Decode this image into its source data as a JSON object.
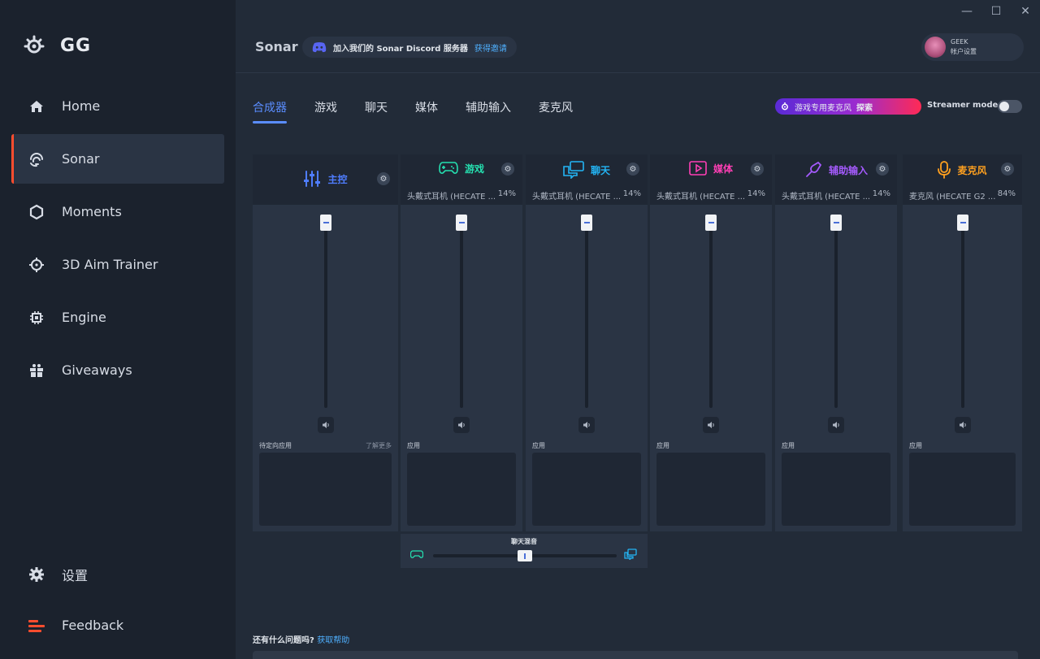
{
  "window": {
    "minimize": "—",
    "maximize": "☐",
    "close": "✕"
  },
  "sidebar": {
    "logo_text": "GG",
    "items": [
      {
        "label": "Home",
        "icon": "home-icon"
      },
      {
        "label": "Sonar",
        "icon": "sonar-icon",
        "active": true
      },
      {
        "label": "Moments",
        "icon": "hexagon-icon"
      },
      {
        "label": "3D Aim Trainer",
        "icon": "target-icon"
      },
      {
        "label": "Engine",
        "icon": "chip-icon"
      },
      {
        "label": "Giveaways",
        "icon": "gift-icon"
      }
    ],
    "settings_label": "设置",
    "feedback_label": "Feedback"
  },
  "header": {
    "title": "Sonar",
    "discord_text": "加入我们的 Sonar Discord 服务器",
    "discord_link": "获得邀请",
    "account_name": "GEEK",
    "account_settings": "帐户设置"
  },
  "tabs": [
    "合成器",
    "游戏",
    "聊天",
    "媒体",
    "辅助输入",
    "麦克风"
  ],
  "promo": {
    "text": "游戏专用麦克风",
    "action": "探索"
  },
  "streamer_mode": {
    "label": "Streamer mode",
    "enabled": false
  },
  "channels": [
    {
      "key": "master",
      "title": "主控",
      "color": "#4f7dff",
      "device": "",
      "percent": "",
      "app_label": "待定向应用",
      "learn_more": "了解更多"
    },
    {
      "key": "game",
      "title": "游戏",
      "color": "#25e0b0",
      "device": "头戴式耳机 (HECATE ...",
      "percent": "14%",
      "app_label": "应用"
    },
    {
      "key": "chat",
      "title": "聊天",
      "color": "#23b5f5",
      "device": "头戴式耳机 (HECATE ...",
      "percent": "14%",
      "app_label": "应用"
    },
    {
      "key": "media",
      "title": "媒体",
      "color": "#ff3fb5",
      "device": "头戴式耳机 (HECATE ...",
      "percent": "14%",
      "app_label": "应用"
    },
    {
      "key": "aux",
      "title": "辅助输入",
      "color": "#a65bff",
      "device": "头戴式耳机 (HECATE ...",
      "percent": "14%",
      "app_label": "应用"
    },
    {
      "key": "mic",
      "title": "麦克风",
      "color": "#ffa01f",
      "device": "麦克风 (HECATE G2 ...",
      "percent": "84%",
      "app_label": "应用"
    }
  ],
  "chatmix": {
    "label": "聊天混音",
    "balance": 0.5
  },
  "help": {
    "question": "还有什么问题吗?",
    "link": "获取帮助"
  },
  "colors": {
    "accent": "#5a8dff",
    "active_marker": "#ff4d2e",
    "link": "#4fb0ff"
  }
}
